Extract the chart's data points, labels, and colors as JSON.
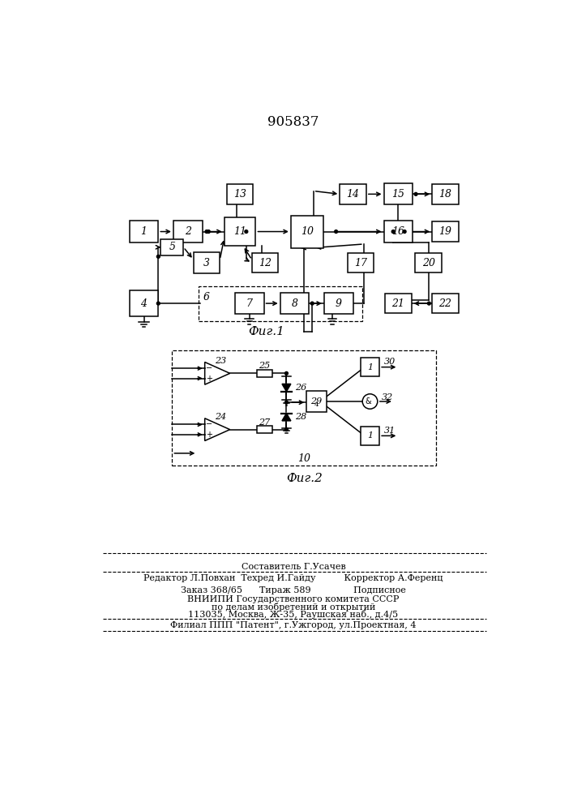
{
  "title": "905837",
  "fig1_caption": "Фиг.1",
  "fig2_caption": "Фиг.2",
  "background_color": "#ffffff",
  "footer_text": [
    [
      353,
      248,
      "Составитель Г.Усачев",
      8,
      "center"
    ],
    [
      353,
      230,
      "Редактор Л.Повхан  Техред И.Гайду          Корректор А.Ференц",
      8,
      "center"
    ],
    [
      353,
      210,
      "Заказ 368/65      Тираж 589               Подписное",
      8,
      "center"
    ],
    [
      353,
      196,
      "ВНИИПИ Государственного комитета СССР",
      8,
      "center"
    ],
    [
      353,
      184,
      "по делам изобретений и открытий",
      8,
      "center"
    ],
    [
      353,
      172,
      "113035, Москва, Ж-35, Раушская наб., д.4/5",
      8,
      "center"
    ],
    [
      353,
      155,
      "Филиал ППП \"Патент\", г.Ужгород, ул.Проектная, 4",
      8,
      "center"
    ]
  ]
}
